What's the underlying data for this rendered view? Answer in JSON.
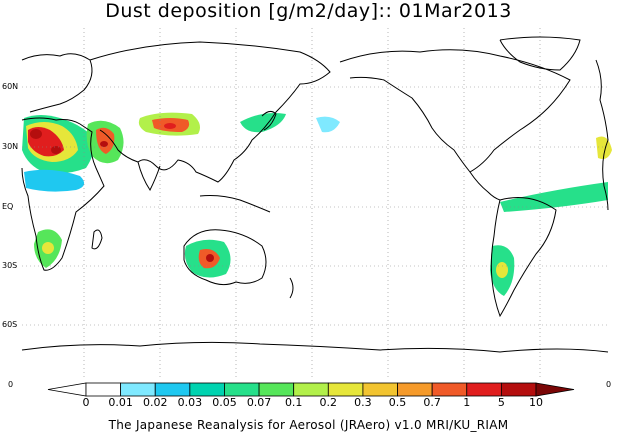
{
  "title": "Dust deposition [g/m2/day]:: 01Mar2013",
  "footer": "The Japanese Reanalysis for Aerosol (JRAero) v1.0 MRI/KU_RIAM",
  "lat_labels": [
    "60N",
    "30N",
    "EQ",
    "30S",
    "60S"
  ],
  "colorbar": {
    "edge_left": "0",
    "edge_right": "0",
    "labels": [
      "0",
      "0.01",
      "0.02",
      "0.03",
      "0.05",
      "0.07",
      "0.1",
      "0.2",
      "0.3",
      "0.5",
      "0.7",
      "1",
      "5",
      "10"
    ],
    "colors": [
      "#ffffff",
      "#ffffff",
      "#7fe9ff",
      "#1fc8f0",
      "#00d3b0",
      "#26e08a",
      "#56e65a",
      "#b2f04a",
      "#e6e63a",
      "#f2c430",
      "#f59a2a",
      "#f05a28",
      "#e01e1e",
      "#b40e0e",
      "#7a0606"
    ]
  },
  "map": {
    "land_color": "#ffffff",
    "coast_color": "#000000",
    "grid_color": "#888888"
  }
}
